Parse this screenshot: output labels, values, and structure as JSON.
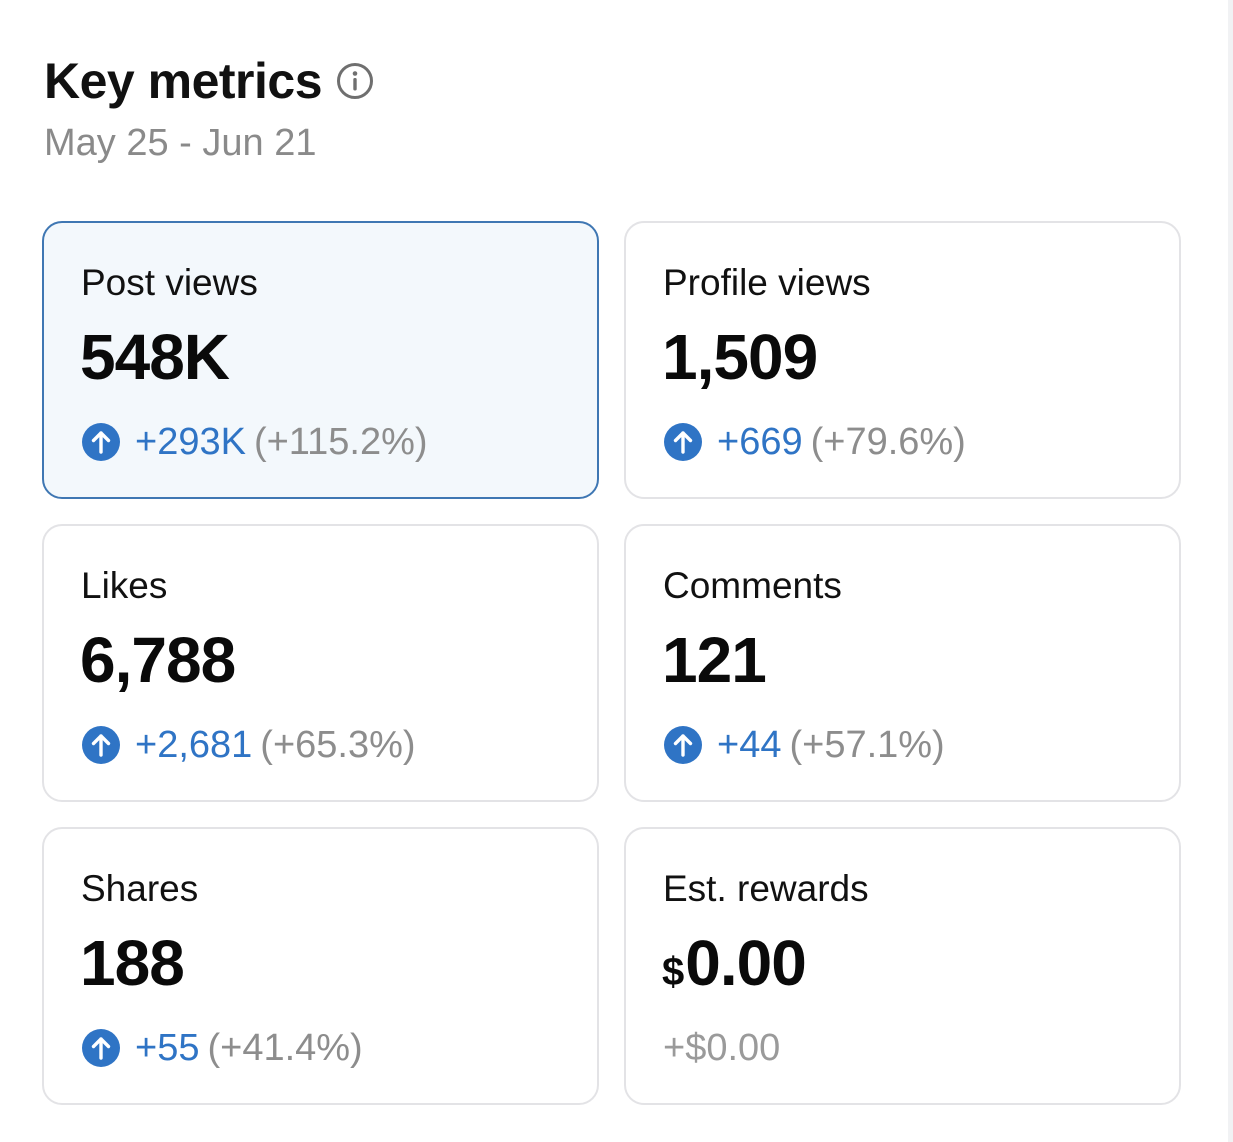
{
  "header": {
    "title": "Key metrics",
    "date_range": "May 25 - Jun 21"
  },
  "colors": {
    "accent": "#2f74c5",
    "selected_border": "#3f77b3",
    "selected_bg": "#f3f8fc",
    "muted": "#8d8d8d"
  },
  "metrics": [
    {
      "label": "Post views",
      "value": "548K",
      "delta": "+293K",
      "pct": "(+115.2%)",
      "icon": "arrow-up-circle-icon",
      "selected": true
    },
    {
      "label": "Profile views",
      "value": "1,509",
      "delta": "+669",
      "pct": "(+79.6%)",
      "icon": "arrow-up-circle-icon"
    },
    {
      "label": "Likes",
      "value": "6,788",
      "delta": "+2,681",
      "pct": "(+65.3%)",
      "icon": "arrow-up-circle-icon"
    },
    {
      "label": "Comments",
      "value": "121",
      "delta": "+44",
      "pct": "(+57.1%)",
      "icon": "arrow-up-circle-icon"
    },
    {
      "label": "Shares",
      "value": "188",
      "delta": "+55",
      "pct": "(+41.4%)",
      "icon": "arrow-up-circle-icon"
    },
    {
      "label": "Est. rewards",
      "currency": "$",
      "value": "0.00",
      "delta": "+$0.00"
    }
  ]
}
